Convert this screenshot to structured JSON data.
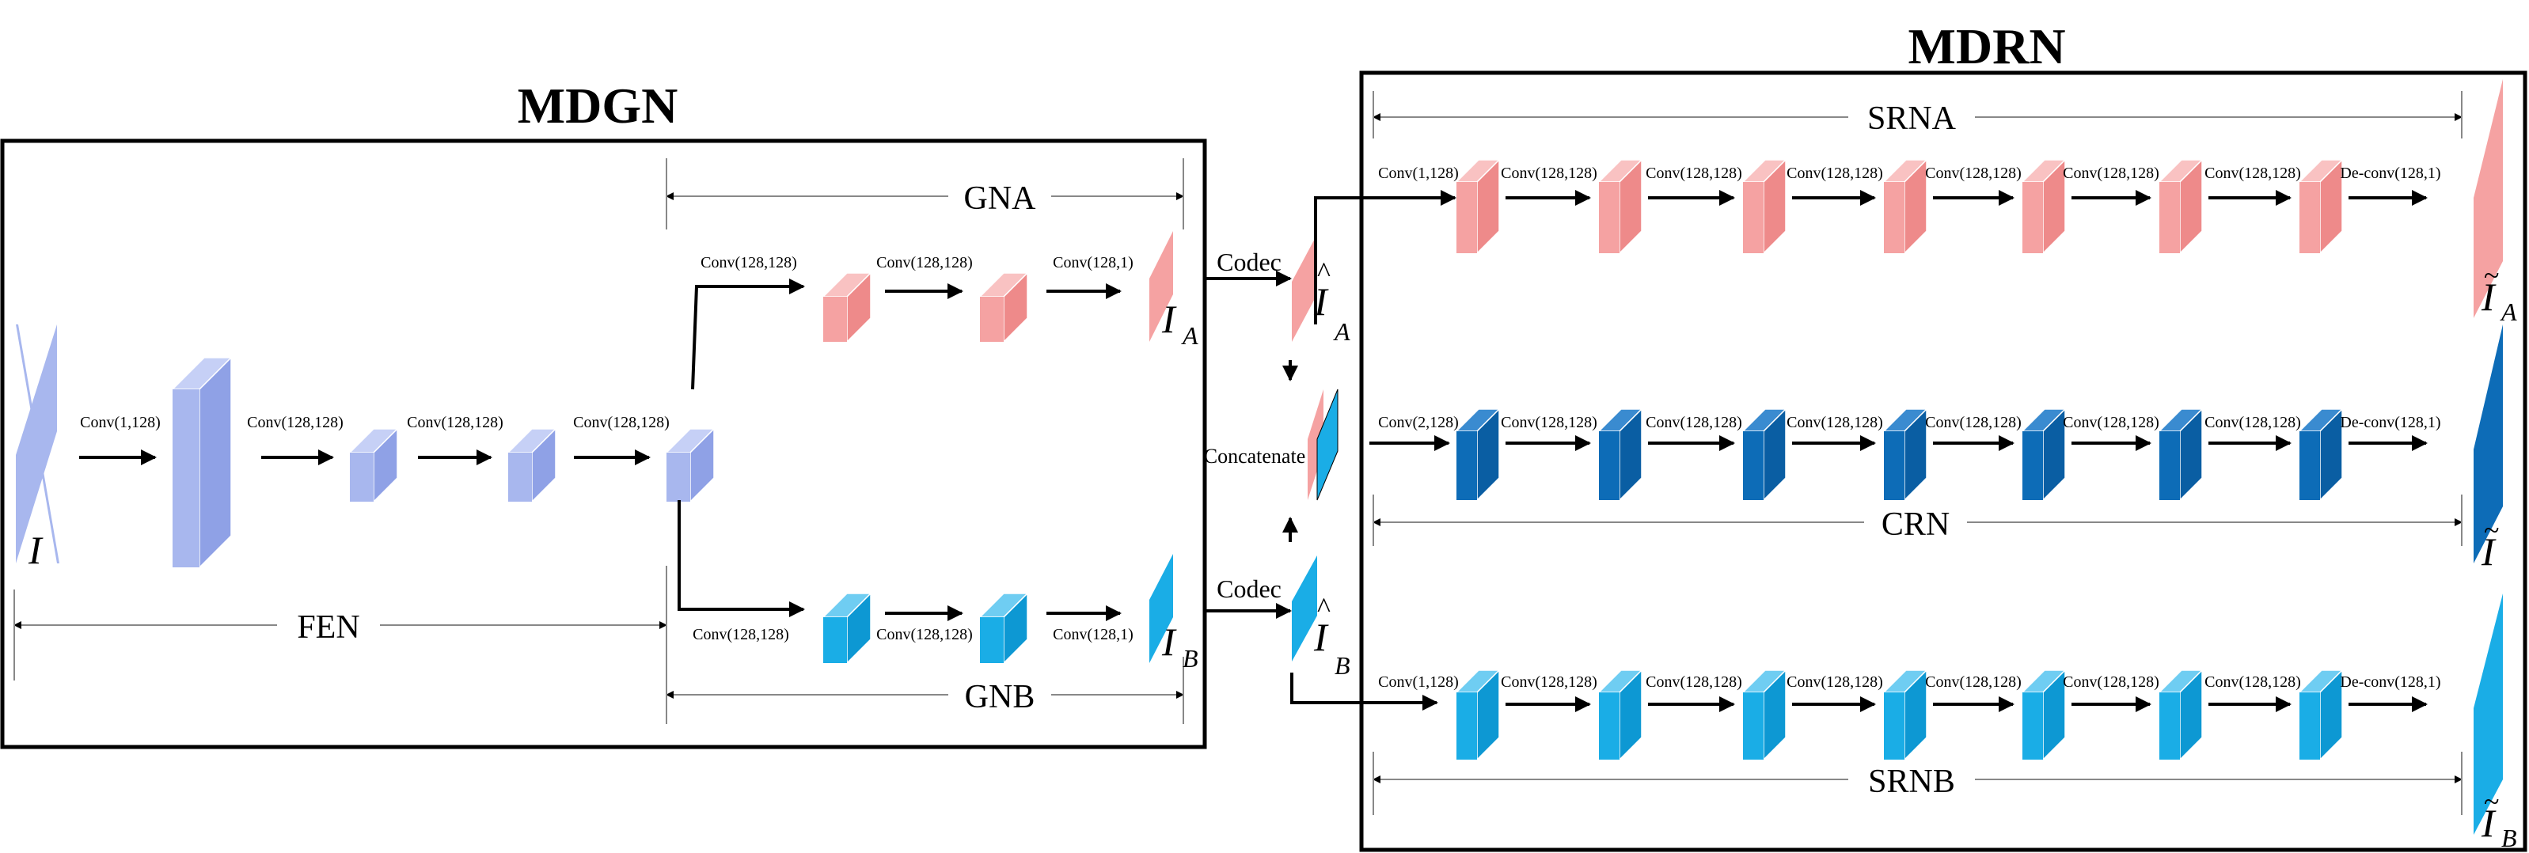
{
  "mdgn": {
    "title": "MDGN",
    "sections": {
      "fen": "FEN",
      "gna": "GNA",
      "gnb": "GNB"
    },
    "fen_layers": [
      "Conv(1,128)",
      "Conv(128,128)",
      "Conv(128,128)",
      "Conv(128,128)"
    ],
    "gna_layers": [
      "Conv(128,128)",
      "Conv(128,128)",
      "Conv(128,1)"
    ],
    "gnb_layers": [
      "Conv(128,128)",
      "Conv(128,128)",
      "Conv(128,1)"
    ],
    "input_symbol": "I",
    "out_a": {
      "base": "I",
      "sub": "A"
    },
    "out_b": {
      "base": "I",
      "sub": "B"
    }
  },
  "middle": {
    "codec_a": "Codec",
    "codec_b": "Codec",
    "concatenate": "Concatenate",
    "hat_a": {
      "base": "I",
      "sub": "A",
      "accent": "^"
    },
    "hat_b": {
      "base": "I",
      "sub": "B",
      "accent": "^"
    }
  },
  "mdrn": {
    "title": "MDRN",
    "sections": {
      "srna": "SRNA",
      "crn": "CRN",
      "srnb": "SRNB"
    },
    "srna_layers": [
      "Conv(1,128)",
      "Conv(128,128)",
      "Conv(128,128)",
      "Conv(128,128)",
      "Conv(128,128)",
      "Conv(128,128)",
      "Conv(128,128)",
      "De-conv(128,1)"
    ],
    "crn_layers": [
      "Conv(2,128)",
      "Conv(128,128)",
      "Conv(128,128)",
      "Conv(128,128)",
      "Conv(128,128)",
      "Conv(128,128)",
      "Conv(128,128)",
      "De-conv(128,1)"
    ],
    "srnb_layers": [
      "Conv(1,128)",
      "Conv(128,128)",
      "Conv(128,128)",
      "Conv(128,128)",
      "Conv(128,128)",
      "Conv(128,128)",
      "Conv(128,128)",
      "De-conv(128,1)"
    ],
    "out_a": {
      "base": "I",
      "sub": "A",
      "accent": "~"
    },
    "out_c": {
      "base": "I",
      "accent": "~"
    },
    "out_b": {
      "base": "I",
      "sub": "B",
      "accent": "~"
    }
  },
  "colors": {
    "lavender": "#a8b7ee",
    "lavender_side": "#8fa1e6",
    "lavender_top": "#c6d0f6",
    "pink": "#f5a2a2",
    "pink_side": "#ee8a8a",
    "pink_top": "#f9c2c2",
    "cyan": "#1aade6",
    "cyan_side": "#0d98d3",
    "cyan_top": "#6fcdf2",
    "navy": "#0d6cb7",
    "navy_side": "#0a5ea3",
    "navy_top": "#3a8bd0"
  }
}
